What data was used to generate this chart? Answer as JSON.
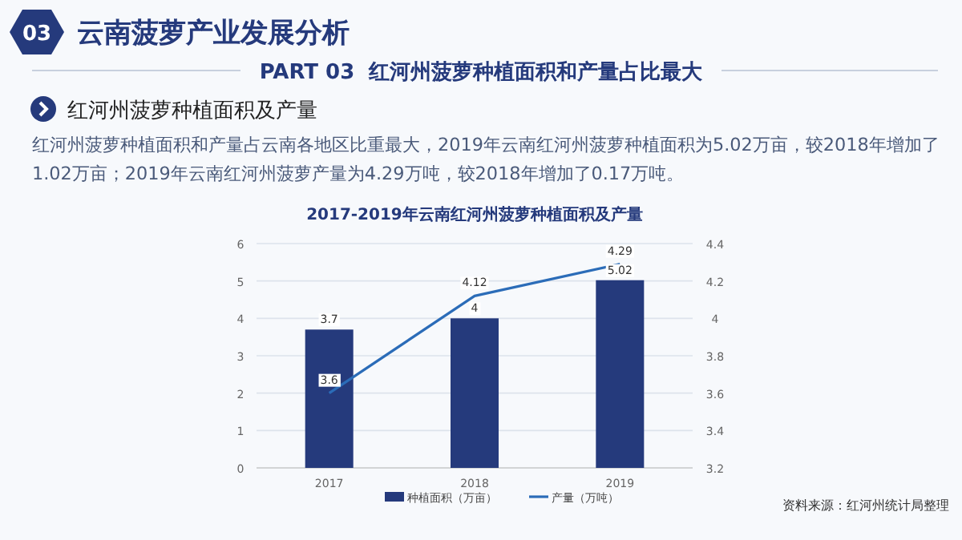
{
  "chart_data": {
    "type": "bar",
    "title": "2017-2019年云南红河州菠萝种植面积及产量",
    "categories": [
      "2017",
      "2018",
      "2019"
    ],
    "series": [
      {
        "name": "种植面积（万亩）",
        "color": "#253a7c",
        "values": [
          3.7,
          4,
          5.02
        ]
      },
      {
        "name": "产量（万吨）",
        "type": "line",
        "axis": "y2",
        "color": "#2b6cb8",
        "values": [
          3.6,
          4.12,
          4.29
        ]
      }
    ],
    "ylim": [
      0,
      6
    ],
    "yticks": [
      0,
      1,
      2,
      3,
      4,
      5,
      6
    ],
    "y2lim": [
      3.2,
      4.4
    ],
    "y2ticks": [
      3.2,
      3.4,
      3.6,
      3.8,
      4,
      4.2,
      4.4
    ],
    "data_labels": true,
    "grid": "y",
    "legend": "bottom",
    "annotations": [
      "03",
      "云南菠萝产业发展分析",
      "PART 03  红河州菠萝种植面积和产量占比最大",
      "红河州菠萝种植面积及产量",
      "红河州菠萝种植面积和产量占云南各地区比重最大，2019年云南红河州菠萝种植面积为5.02万亩，较2018年增加了1.02万亩；2019年云南红河州菠萝产量为4.29万吨，较2018年增加了0.17万吨。",
      "资料来源：红河州统计局整理"
    ]
  }
}
